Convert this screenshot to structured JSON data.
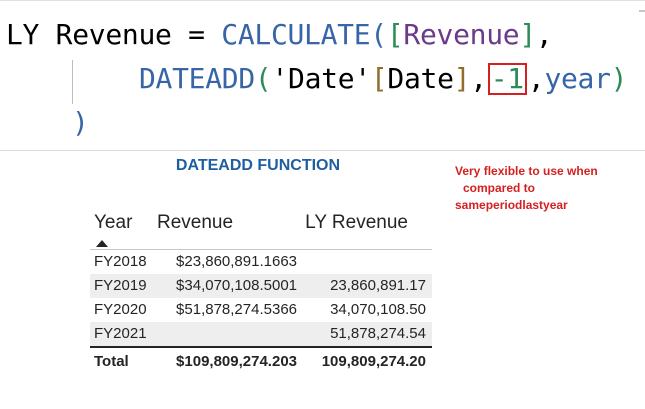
{
  "code": {
    "line1": {
      "measure": "LY Revenue",
      "equals": " = ",
      "func": "CALCULATE",
      "open_paren": "(",
      "bracket_open": "[",
      "ref": "Revenue",
      "bracket_close": "]",
      "comma": ","
    },
    "line2": {
      "func": "DATEADD",
      "open_paren": "(",
      "table": "'Date'",
      "bracket_open": "[",
      "column": "Date",
      "bracket_close": "]",
      "comma1": ",",
      "offset": "-1",
      "comma2": ",",
      "interval": "year",
      "close_paren": ")"
    },
    "line3": {
      "close_paren": ")"
    }
  },
  "visual": {
    "title": "DATEADD FUNCTION",
    "annotation": [
      "Very flexible to use when",
      "compared to",
      "sameperiodlastyear"
    ]
  },
  "table": {
    "columns": [
      "Year",
      "Revenue",
      "LY Revenue"
    ],
    "sorted_column": "Year",
    "rows": [
      {
        "year": "FY2018",
        "revenue": "$23,860,891.1663",
        "ly_revenue": ""
      },
      {
        "year": "FY2019",
        "revenue": "$34,070,108.5001",
        "ly_revenue": "23,860,891.17"
      },
      {
        "year": "FY2020",
        "revenue": "$51,878,274.5366",
        "ly_revenue": "34,070,108.50"
      },
      {
        "year": "FY2021",
        "revenue": "",
        "ly_revenue": "51,878,274.54"
      }
    ],
    "total": {
      "label": "Total",
      "revenue": "$109,809,274.203",
      "ly_revenue": "109,809,274.20"
    }
  },
  "colors": {
    "function_blue": "#3765a8",
    "number_green": "#2d8b57",
    "reference_purple": "#6b3a8a",
    "highlight_red": "#d62020",
    "title_blue": "#1f5fa0"
  },
  "icons": {
    "sort": "sort-ascending-icon"
  }
}
